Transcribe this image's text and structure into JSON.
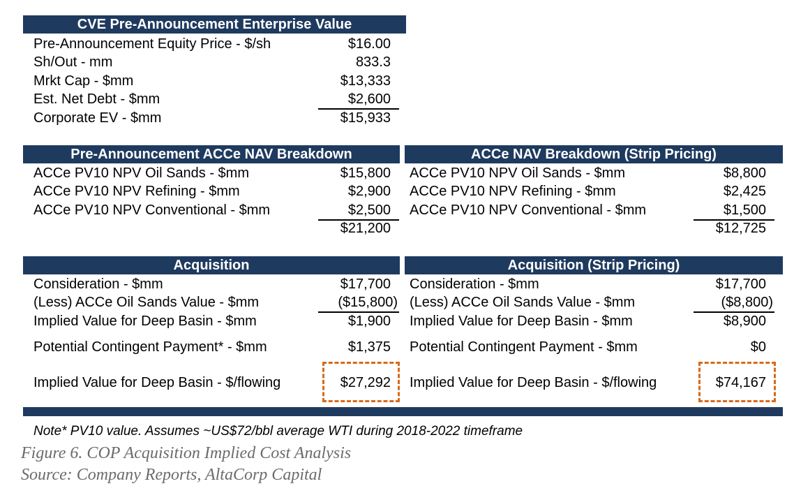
{
  "ev": {
    "header": "CVE Pre-Announcement Enterprise Value",
    "rows": [
      {
        "label": "Pre-Announcement Equity Price - $/sh",
        "value": "$16.00"
      },
      {
        "label": "Sh/Out - mm",
        "value": "833.3"
      },
      {
        "label": "Mrkt Cap - $mm",
        "value": "$13,333"
      },
      {
        "label": "Est. Net Debt - $mm",
        "value": "$2,600"
      },
      {
        "label": "Corporate EV - $mm",
        "value": "$15,933"
      }
    ]
  },
  "nav_pre": {
    "header": "Pre-Announcement ACCe NAV Breakdown",
    "rows": [
      {
        "label": "ACCe PV10 NPV Oil Sands - $mm",
        "value": "$15,800"
      },
      {
        "label": "ACCe PV10 NPV Refining - $mm",
        "value": "$2,900"
      },
      {
        "label": "ACCe PV10 NPV Conventional - $mm",
        "value": "$2,500"
      }
    ],
    "total": "$21,200"
  },
  "nav_strip": {
    "header": "ACCe NAV Breakdown (Strip Pricing)",
    "rows": [
      {
        "label": "ACCe PV10 NPV Oil Sands - $mm",
        "value": "$8,800"
      },
      {
        "label": "ACCe PV10 NPV Refining - $mm",
        "value": "$2,425"
      },
      {
        "label": "ACCe PV10 NPV Conventional - $mm",
        "value": "$1,500"
      }
    ],
    "total": "$12,725"
  },
  "acq": {
    "header": "Acquisition",
    "rows": [
      {
        "label": "Consideration - $mm",
        "value": "$17,700"
      },
      {
        "label": "(Less) ACCe Oil Sands Value - $mm",
        "value": "($15,800)"
      },
      {
        "label": "Implied Value for Deep Basin - $mm",
        "value": "$1,900"
      },
      {
        "label": "Potential Contingent Payment* - $mm",
        "value": "$1,375"
      },
      {
        "label": "Implied Value for Deep Basin - $/flowing",
        "value": "$27,292"
      }
    ]
  },
  "acq_strip": {
    "header": "Acquisition (Strip Pricing)",
    "rows": [
      {
        "label": "Consideration - $mm",
        "value": "$17,700"
      },
      {
        "label": "(Less) ACCe Oil Sands Value - $mm",
        "value": "($8,800)"
      },
      {
        "label": "Implied Value for Deep Basin - $mm",
        "value": "$8,900"
      },
      {
        "label": "Potential Contingent Payment - $mm",
        "value": "$0"
      },
      {
        "label": "Implied Value for Deep Basin - $/flowing",
        "value": "$74,167"
      }
    ]
  },
  "note": "Note*  PV10 value. Assumes ~US$72/bbl average WTI during 2018-2022 timeframe",
  "caption": {
    "figure": "Figure 6. COP Acquisition Implied Cost Analysis",
    "source": "Source: Company Reports, AltaCorp Capital"
  },
  "colors": {
    "header_bg": "#1f3a5f",
    "highlight_dash": "#d86a1a",
    "caption": "#6b6b6b"
  }
}
